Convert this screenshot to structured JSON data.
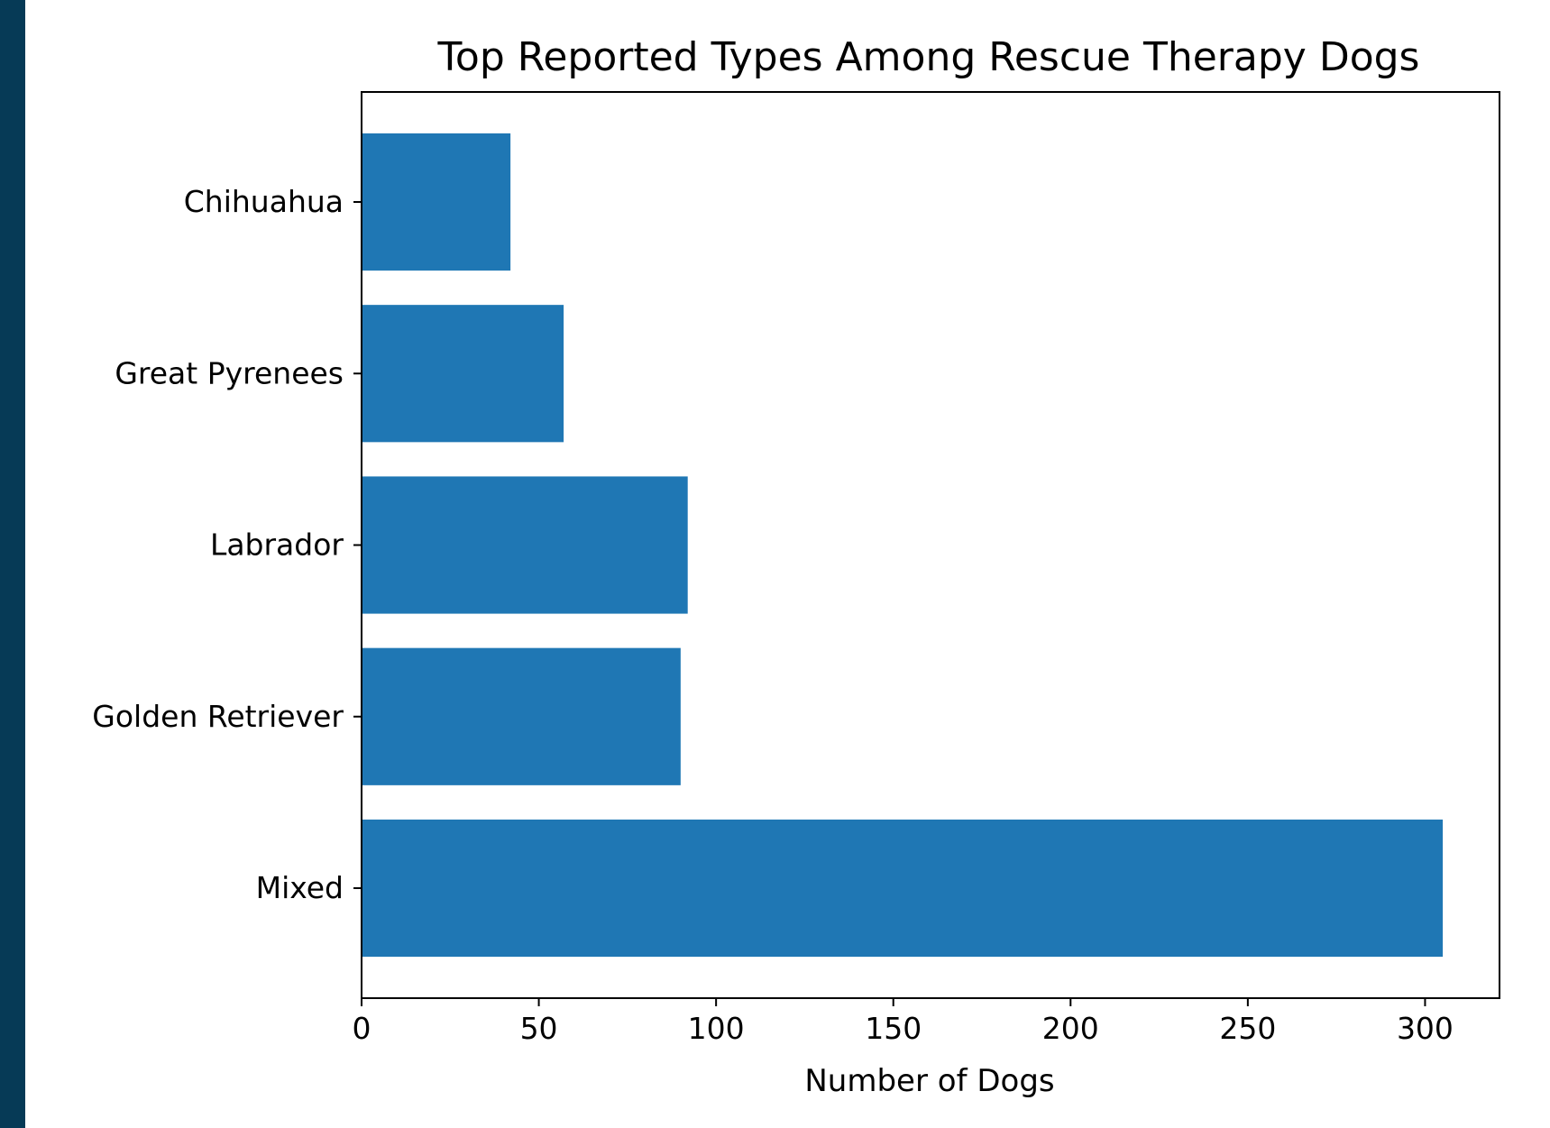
{
  "chart_data": {
    "type": "bar",
    "orientation": "horizontal",
    "title": "Top Reported Types Among Rescue Therapy Dogs",
    "xlabel": "Number of Dogs",
    "ylabel": "",
    "categories": [
      "Mixed",
      "Golden Retriever",
      "Labrador",
      "Great Pyrenees",
      "Chihuahua"
    ],
    "values": [
      305,
      90,
      92,
      57,
      42
    ],
    "xlim": [
      0,
      321
    ],
    "xticks": [
      0,
      50,
      100,
      150,
      200,
      250,
      300
    ],
    "bar_color": "#1f77b4",
    "grid": false,
    "legend": "none"
  },
  "colors": {
    "background_border": "#063a56",
    "plot_background": "#ffffff"
  }
}
